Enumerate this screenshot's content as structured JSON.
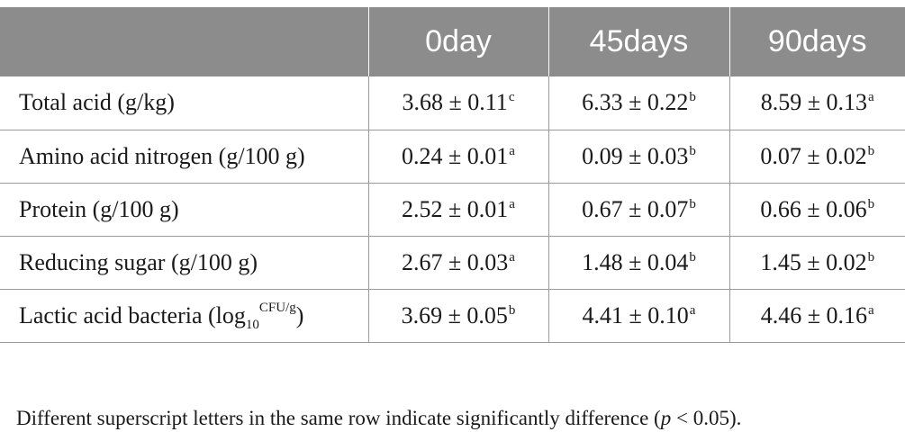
{
  "table": {
    "header": [
      "",
      "0day",
      "45days",
      "90days"
    ],
    "rows": [
      {
        "label": "Total acid (g/kg)",
        "cells": [
          {
            "value": "3.68 ± 0.11",
            "sig": "c"
          },
          {
            "value": "6.33 ± 0.22",
            "sig": "b"
          },
          {
            "value": "8.59 ± 0.13",
            "sig": "a"
          }
        ]
      },
      {
        "label": "Amino acid nitrogen (g/100 g)",
        "cells": [
          {
            "value": "0.24 ± 0.01",
            "sig": "a"
          },
          {
            "value": "0.09 ± 0.03",
            "sig": "b"
          },
          {
            "value": "0.07 ± 0.02",
            "sig": "b"
          }
        ]
      },
      {
        "label": "Protein (g/100 g)",
        "cells": [
          {
            "value": "2.52 ± 0.01",
            "sig": "a"
          },
          {
            "value": "0.67 ± 0.07",
            "sig": "b"
          },
          {
            "value": "0.66 ± 0.06",
            "sig": "b"
          }
        ]
      },
      {
        "label": "Reducing sugar (g/100 g)",
        "cells": [
          {
            "value": "2.67 ± 0.03",
            "sig": "a"
          },
          {
            "value": "1.48 ± 0.04",
            "sig": "b"
          },
          {
            "value": "1.45 ± 0.02",
            "sig": "b"
          }
        ]
      },
      {
        "label": "Lactic acid bacteria (log",
        "label_sub": "10",
        "label_sup": "CFU/g",
        "label_close": ")",
        "cells": [
          {
            "value": "3.69 ± 0.05",
            "sig": "b"
          },
          {
            "value": "4.41 ± 0.10",
            "sig": "a"
          },
          {
            "value": "4.46 ± 0.16",
            "sig": "a"
          }
        ]
      }
    ]
  },
  "footnote": {
    "text_before": "Different superscript letters in the same row indicate significantly difference (",
    "p_symbol": "p",
    "text_after": " < 0.05)."
  },
  "colors": {
    "header_bg": "#8c8c8c",
    "header_text": "#ffffff",
    "rule": "#9a9a9a"
  }
}
